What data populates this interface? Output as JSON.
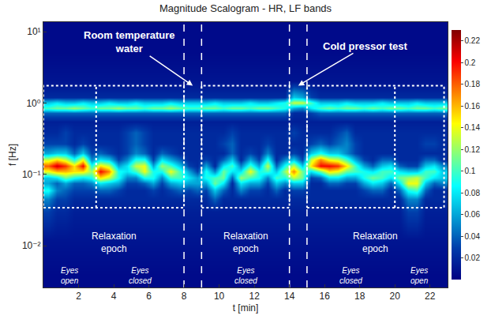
{
  "chart_data": {
    "type": "heatmap",
    "title": "Magnitude Scalogram - HR, LF bands",
    "x_label": "t [min]",
    "y_label": "f [Hz]",
    "log": "y",
    "grid": false,
    "xlim": [
      0,
      23
    ],
    "xticks": [
      2,
      4,
      6,
      8,
      10,
      12,
      14,
      16,
      18,
      20,
      22
    ],
    "ylim": [
      0.0026,
      13.6
    ],
    "yticks": [
      {
        "value": 0.01,
        "label": "10⁻²"
      },
      {
        "value": 0.1,
        "label": "10⁻¹"
      },
      {
        "value": 1,
        "label": "10⁰"
      },
      {
        "value": 10,
        "label": "10¹"
      }
    ],
    "zlim": [
      0,
      0.23
    ],
    "zticks": [
      0.02,
      0.04,
      0.06,
      0.08,
      0.1,
      0.12,
      0.14,
      0.16,
      0.18,
      0.2,
      0.22
    ],
    "x": [
      0.25,
      0.75,
      1.25,
      1.75,
      2.25,
      2.75,
      3.25,
      3.75,
      4.25,
      4.75,
      5.25,
      5.75,
      6.25,
      6.75,
      7.25,
      7.75,
      8.25,
      8.75,
      9.25,
      9.75,
      10.25,
      10.75,
      11.25,
      11.75,
      12.25,
      12.75,
      13.25,
      13.75,
      14.25,
      14.75,
      15.25,
      15.75,
      16.25,
      16.75,
      17.25,
      17.75,
      18.25,
      18.75,
      19.25,
      19.75,
      20.25,
      20.75,
      21.25,
      21.75,
      22.25,
      22.75
    ],
    "y": [
      0.004,
      0.012,
      0.03,
      0.045,
      0.06,
      0.075,
      0.09,
      0.11,
      0.13,
      0.16,
      0.2,
      0.27,
      0.38,
      0.55,
      0.72,
      0.85,
      1.0,
      1.2,
      2,
      5,
      12
    ],
    "cells": [
      [
        0.005,
        0.005,
        0.005,
        0.005,
        0.005,
        0.005,
        0.005,
        0.005,
        0.005,
        0.005,
        0.005,
        0.005,
        0.005,
        0.005,
        0.005,
        0.005,
        0.005,
        0.005,
        0.005,
        0.005,
        0.005,
        0.005,
        0.005,
        0.005,
        0.005,
        0.005,
        0.005,
        0.005,
        0.005,
        0.005,
        0.005,
        0.005,
        0.005,
        0.005,
        0.005,
        0.005,
        0.005,
        0.005,
        0.005,
        0.005,
        0.005,
        0.005,
        0.005,
        0.005,
        0.005,
        0.005
      ],
      [
        0.01,
        0.01,
        0.01,
        0.01,
        0.01,
        0.01,
        0.01,
        0.01,
        0.01,
        0.01,
        0.01,
        0.01,
        0.01,
        0.01,
        0.01,
        0.01,
        0.01,
        0.01,
        0.01,
        0.01,
        0.01,
        0.01,
        0.01,
        0.01,
        0.01,
        0.01,
        0.01,
        0.01,
        0.01,
        0.01,
        0.01,
        0.01,
        0.01,
        0.01,
        0.01,
        0.01,
        0.01,
        0.01,
        0.01,
        0.01,
        0.01,
        0.01,
        0.01,
        0.01,
        0.01,
        0.01
      ],
      [
        0.03,
        0.02,
        0.02,
        0.015,
        0.015,
        0.015,
        0.015,
        0.015,
        0.015,
        0.015,
        0.015,
        0.015,
        0.015,
        0.015,
        0.015,
        0.015,
        0.015,
        0.015,
        0.015,
        0.015,
        0.015,
        0.015,
        0.015,
        0.015,
        0.015,
        0.015,
        0.015,
        0.015,
        0.015,
        0.015,
        0.015,
        0.015,
        0.015,
        0.015,
        0.015,
        0.015,
        0.015,
        0.015,
        0.015,
        0.015,
        0.015,
        0.03,
        0.03,
        0.015,
        0.015,
        0.015
      ],
      [
        0.05,
        0.03,
        0.03,
        0.02,
        0.02,
        0.02,
        0.02,
        0.02,
        0.02,
        0.02,
        0.02,
        0.02,
        0.02,
        0.02,
        0.02,
        0.02,
        0.02,
        0.02,
        0.02,
        0.04,
        0.02,
        0.02,
        0.02,
        0.02,
        0.02,
        0.02,
        0.02,
        0.02,
        0.02,
        0.02,
        0.02,
        0.02,
        0.02,
        0.02,
        0.02,
        0.02,
        0.02,
        0.02,
        0.02,
        0.02,
        0.02,
        0.05,
        0.05,
        0.02,
        0.02,
        0.02
      ],
      [
        0.09,
        0.05,
        0.04,
        0.03,
        0.03,
        0.03,
        0.04,
        0.04,
        0.03,
        0.02,
        0.02,
        0.02,
        0.03,
        0.02,
        0.03,
        0.04,
        0.03,
        0.04,
        0.03,
        0.07,
        0.04,
        0.02,
        0.05,
        0.03,
        0.03,
        0.02,
        0.04,
        0.02,
        0.03,
        0.03,
        0.02,
        0.02,
        0.02,
        0.02,
        0.02,
        0.02,
        0.03,
        0.04,
        0.04,
        0.02,
        0.04,
        0.09,
        0.1,
        0.04,
        0.02,
        0.02
      ],
      [
        0.06,
        0.04,
        0.06,
        0.04,
        0.04,
        0.05,
        0.08,
        0.07,
        0.06,
        0.03,
        0.03,
        0.04,
        0.06,
        0.03,
        0.06,
        0.07,
        0.06,
        0.06,
        0.06,
        0.11,
        0.08,
        0.02,
        0.08,
        0.06,
        0.06,
        0.03,
        0.07,
        0.05,
        0.07,
        0.07,
        0.02,
        0.02,
        0.04,
        0.04,
        0.03,
        0.03,
        0.06,
        0.08,
        0.07,
        0.04,
        0.08,
        0.14,
        0.14,
        0.07,
        0.04,
        0.05
      ],
      [
        0.07,
        0.08,
        0.11,
        0.09,
        0.08,
        0.09,
        0.15,
        0.13,
        0.09,
        0.05,
        0.05,
        0.09,
        0.09,
        0.05,
        0.1,
        0.1,
        0.08,
        0.06,
        0.09,
        0.1,
        0.11,
        0.04,
        0.12,
        0.1,
        0.09,
        0.05,
        0.1,
        0.09,
        0.13,
        0.11,
        0.03,
        0.04,
        0.08,
        0.08,
        0.06,
        0.06,
        0.09,
        0.11,
        0.1,
        0.08,
        0.11,
        0.12,
        0.13,
        0.1,
        0.08,
        0.07
      ],
      [
        0.14,
        0.16,
        0.16,
        0.15,
        0.15,
        0.12,
        0.2,
        0.17,
        0.09,
        0.08,
        0.1,
        0.14,
        0.09,
        0.09,
        0.14,
        0.1,
        0.06,
        0.03,
        0.09,
        0.05,
        0.11,
        0.08,
        0.08,
        0.14,
        0.09,
        0.1,
        0.07,
        0.12,
        0.17,
        0.11,
        0.08,
        0.11,
        0.15,
        0.14,
        0.11,
        0.1,
        0.09,
        0.08,
        0.1,
        0.1,
        0.08,
        0.07,
        0.07,
        0.1,
        0.1,
        0.07
      ],
      [
        0.18,
        0.21,
        0.19,
        0.15,
        0.2,
        0.09,
        0.15,
        0.13,
        0.06,
        0.08,
        0.13,
        0.14,
        0.06,
        0.12,
        0.1,
        0.07,
        0.03,
        0.02,
        0.06,
        0.02,
        0.08,
        0.1,
        0.05,
        0.1,
        0.06,
        0.13,
        0.04,
        0.09,
        0.13,
        0.07,
        0.15,
        0.2,
        0.2,
        0.19,
        0.15,
        0.1,
        0.06,
        0.04,
        0.07,
        0.08,
        0.04,
        0.03,
        0.03,
        0.07,
        0.08,
        0.05
      ],
      [
        0.13,
        0.15,
        0.13,
        0.09,
        0.14,
        0.05,
        0.08,
        0.07,
        0.03,
        0.05,
        0.09,
        0.09,
        0.03,
        0.08,
        0.06,
        0.04,
        0.02,
        0.02,
        0.03,
        0.02,
        0.04,
        0.07,
        0.02,
        0.06,
        0.03,
        0.09,
        0.02,
        0.05,
        0.07,
        0.03,
        0.13,
        0.17,
        0.14,
        0.13,
        0.1,
        0.06,
        0.03,
        0.02,
        0.04,
        0.04,
        0.02,
        0.02,
        0.02,
        0.04,
        0.04,
        0.02
      ],
      [
        0.06,
        0.07,
        0.07,
        0.04,
        0.07,
        0.03,
        0.04,
        0.03,
        0.02,
        0.03,
        0.05,
        0.04,
        0.02,
        0.04,
        0.03,
        0.02,
        0.02,
        0.02,
        0.02,
        0.02,
        0.02,
        0.04,
        0.02,
        0.03,
        0.02,
        0.05,
        0.02,
        0.02,
        0.03,
        0.02,
        0.07,
        0.09,
        0.07,
        0.07,
        0.05,
        0.03,
        0.02,
        0.02,
        0.02,
        0.02,
        0.02,
        0.02,
        0.02,
        0.02,
        0.02,
        0.02
      ],
      [
        0.03,
        0.03,
        0.03,
        0.02,
        0.03,
        0.02,
        0.02,
        0.02,
        0.02,
        0.03,
        0.04,
        0.03,
        0.02,
        0.02,
        0.02,
        0.02,
        0.02,
        0.02,
        0.02,
        0.02,
        0.03,
        0.04,
        0.02,
        0.02,
        0.02,
        0.03,
        0.02,
        0.02,
        0.02,
        0.02,
        0.03,
        0.04,
        0.03,
        0.04,
        0.05,
        0.03,
        0.02,
        0.02,
        0.02,
        0.02,
        0.02,
        0.02,
        0.02,
        0.03,
        0.03,
        0.02
      ],
      [
        0.02,
        0.02,
        0.03,
        0.02,
        0.02,
        0.02,
        0.02,
        0.02,
        0.02,
        0.03,
        0.04,
        0.03,
        0.02,
        0.02,
        0.02,
        0.02,
        0.02,
        0.02,
        0.02,
        0.02,
        0.02,
        0.03,
        0.02,
        0.02,
        0.02,
        0.02,
        0.02,
        0.02,
        0.03,
        0.02,
        0.02,
        0.02,
        0.02,
        0.03,
        0.04,
        0.02,
        0.02,
        0.02,
        0.02,
        0.02,
        0.02,
        0.02,
        0.02,
        0.02,
        0.02,
        0.02
      ],
      [
        0.015,
        0.015,
        0.015,
        0.015,
        0.015,
        0.015,
        0.015,
        0.015,
        0.015,
        0.015,
        0.015,
        0.015,
        0.015,
        0.015,
        0.015,
        0.015,
        0.015,
        0.015,
        0.015,
        0.015,
        0.015,
        0.015,
        0.015,
        0.015,
        0.015,
        0.015,
        0.015,
        0.015,
        0.015,
        0.015,
        0.015,
        0.015,
        0.015,
        0.015,
        0.015,
        0.015,
        0.015,
        0.015,
        0.015,
        0.015,
        0.015,
        0.015,
        0.015,
        0.015,
        0.015,
        0.015
      ],
      [
        0.04,
        0.04,
        0.04,
        0.04,
        0.04,
        0.04,
        0.04,
        0.04,
        0.04,
        0.04,
        0.04,
        0.04,
        0.04,
        0.04,
        0.04,
        0.04,
        0.04,
        0.04,
        0.04,
        0.04,
        0.04,
        0.04,
        0.04,
        0.04,
        0.04,
        0.04,
        0.04,
        0.04,
        0.02,
        0.02,
        0.03,
        0.04,
        0.04,
        0.04,
        0.04,
        0.04,
        0.04,
        0.04,
        0.04,
        0.04,
        0.04,
        0.04,
        0.04,
        0.04,
        0.04,
        0.04
      ],
      [
        0.1,
        0.11,
        0.11,
        0.12,
        0.11,
        0.1,
        0.11,
        0.11,
        0.12,
        0.11,
        0.11,
        0.1,
        0.11,
        0.11,
        0.12,
        0.11,
        0.1,
        0.1,
        0.11,
        0.11,
        0.1,
        0.11,
        0.11,
        0.1,
        0.11,
        0.11,
        0.1,
        0.09,
        0.06,
        0.05,
        0.08,
        0.1,
        0.11,
        0.1,
        0.11,
        0.11,
        0.1,
        0.11,
        0.1,
        0.11,
        0.11,
        0.1,
        0.11,
        0.11,
        0.1,
        0.11
      ],
      [
        0.07,
        0.08,
        0.07,
        0.07,
        0.08,
        0.07,
        0.07,
        0.08,
        0.07,
        0.07,
        0.08,
        0.07,
        0.07,
        0.07,
        0.08,
        0.07,
        0.07,
        0.07,
        0.07,
        0.08,
        0.07,
        0.07,
        0.07,
        0.08,
        0.07,
        0.07,
        0.08,
        0.09,
        0.13,
        0.13,
        0.1,
        0.07,
        0.07,
        0.07,
        0.08,
        0.07,
        0.07,
        0.07,
        0.08,
        0.07,
        0.07,
        0.07,
        0.08,
        0.07,
        0.07,
        0.07
      ],
      [
        0.02,
        0.02,
        0.02,
        0.02,
        0.02,
        0.02,
        0.02,
        0.02,
        0.02,
        0.02,
        0.02,
        0.02,
        0.02,
        0.02,
        0.02,
        0.02,
        0.02,
        0.02,
        0.02,
        0.02,
        0.02,
        0.02,
        0.02,
        0.02,
        0.02,
        0.02,
        0.02,
        0.02,
        0.07,
        0.06,
        0.03,
        0.02,
        0.02,
        0.02,
        0.02,
        0.02,
        0.02,
        0.02,
        0.02,
        0.02,
        0.02,
        0.02,
        0.02,
        0.02,
        0.02,
        0.02
      ],
      [
        0.01,
        0.01,
        0.01,
        0.01,
        0.01,
        0.01,
        0.01,
        0.01,
        0.01,
        0.01,
        0.01,
        0.01,
        0.01,
        0.01,
        0.01,
        0.01,
        0.01,
        0.01,
        0.01,
        0.01,
        0.01,
        0.01,
        0.01,
        0.01,
        0.01,
        0.01,
        0.01,
        0.01,
        0.01,
        0.01,
        0.01,
        0.01,
        0.01,
        0.01,
        0.01,
        0.01,
        0.01,
        0.01,
        0.01,
        0.01,
        0.01,
        0.01,
        0.01,
        0.01,
        0.01,
        0.01
      ],
      [
        0.005,
        0.005,
        0.005,
        0.005,
        0.005,
        0.005,
        0.005,
        0.005,
        0.005,
        0.005,
        0.005,
        0.005,
        0.005,
        0.005,
        0.005,
        0.005,
        0.005,
        0.005,
        0.005,
        0.005,
        0.005,
        0.005,
        0.005,
        0.005,
        0.005,
        0.005,
        0.005,
        0.005,
        0.005,
        0.005,
        0.005,
        0.005,
        0.005,
        0.005,
        0.005,
        0.005,
        0.005,
        0.005,
        0.005,
        0.005,
        0.005,
        0.005,
        0.005,
        0.005,
        0.005,
        0.005
      ],
      [
        0.005,
        0.005,
        0.005,
        0.005,
        0.005,
        0.005,
        0.005,
        0.005,
        0.005,
        0.005,
        0.005,
        0.005,
        0.005,
        0.005,
        0.005,
        0.005,
        0.005,
        0.005,
        0.005,
        0.005,
        0.005,
        0.005,
        0.005,
        0.005,
        0.005,
        0.005,
        0.005,
        0.005,
        0.005,
        0.005,
        0.005,
        0.005,
        0.005,
        0.005,
        0.005,
        0.005,
        0.005,
        0.005,
        0.005,
        0.005,
        0.005,
        0.005,
        0.005,
        0.005,
        0.005,
        0.005
      ]
    ],
    "epoch_flim": [
      0.034,
      1.75
    ],
    "epochs": [
      {
        "t": [
          0,
          8
        ],
        "label": "Relaxation epoch",
        "phases": [
          {
            "t": [
              0,
              3
            ],
            "label": "Eyes open"
          },
          {
            "t": [
              3,
              8
            ],
            "label": "Eyes closed"
          }
        ]
      },
      {
        "t": [
          9,
          14
        ],
        "label": "Relaxation epoch",
        "phases": [
          {
            "t": [
              9,
              14
            ],
            "label": "Eyes closed"
          }
        ]
      },
      {
        "t": [
          15,
          22.8
        ],
        "label": "Relaxation epoch",
        "phases": [
          {
            "t": [
              15,
              20
            ],
            "label": "Eyes closed"
          },
          {
            "t": [
              20,
              22.8
            ],
            "label": "Eyes open"
          }
        ]
      }
    ],
    "stimuli": [
      {
        "t": [
          8,
          9
        ],
        "label": "Room temperature water"
      },
      {
        "t": [
          14,
          15
        ],
        "label": "Cold pressor test"
      }
    ]
  }
}
